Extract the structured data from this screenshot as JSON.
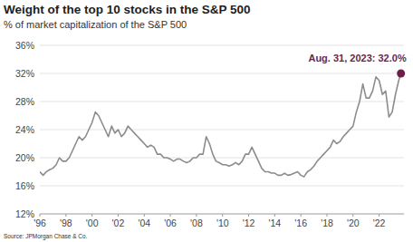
{
  "chart_data": {
    "type": "line",
    "title": "Weight of the top 10 stocks in the S&P 500",
    "subtitle": "% of market capitalization of the S&P 500",
    "source": "Source: JPMorgan Chase & Co.",
    "annotation": "Aug. 31, 2023: 32.0%",
    "color": "#8c8c8c",
    "grid": true,
    "x": [
      1996,
      1996.25,
      1996.5,
      1996.75,
      1997,
      1997.25,
      1997.5,
      1997.75,
      1998,
      1998.25,
      1998.5,
      1998.75,
      1999,
      1999.25,
      1999.5,
      1999.75,
      2000,
      2000.25,
      2000.5,
      2000.75,
      2001,
      2001.25,
      2001.5,
      2001.75,
      2002,
      2002.25,
      2002.5,
      2002.75,
      2003,
      2003.25,
      2003.5,
      2003.75,
      2004,
      2004.25,
      2004.5,
      2004.75,
      2005,
      2005.25,
      2005.5,
      2005.75,
      2006,
      2006.25,
      2006.5,
      2006.75,
      2007,
      2007.25,
      2007.5,
      2007.75,
      2008,
      2008.25,
      2008.5,
      2008.75,
      2009,
      2009.25,
      2009.5,
      2009.75,
      2010,
      2010.25,
      2010.5,
      2010.75,
      2011,
      2011.25,
      2011.5,
      2011.75,
      2012,
      2012.25,
      2012.5,
      2012.75,
      2013,
      2013.25,
      2013.5,
      2013.75,
      2014,
      2014.25,
      2014.5,
      2014.75,
      2015,
      2015.25,
      2015.5,
      2015.75,
      2016,
      2016.25,
      2016.5,
      2016.75,
      2017,
      2017.25,
      2017.5,
      2017.75,
      2018,
      2018.25,
      2018.5,
      2018.75,
      2019,
      2019.25,
      2019.5,
      2019.75,
      2020,
      2020.25,
      2020.5,
      2020.75,
      2021,
      2021.25,
      2021.5,
      2021.75,
      2022,
      2022.25,
      2022.5,
      2022.75,
      2023,
      2023.25,
      2023.5,
      2023.67
    ],
    "values": [
      18,
      17.5,
      18,
      18.3,
      18.5,
      19,
      20,
      19.5,
      19.5,
      20,
      21,
      22,
      23,
      22.5,
      23,
      24,
      25,
      26.5,
      26,
      25,
      24,
      23,
      24.5,
      23.5,
      24,
      23,
      23.5,
      24.5,
      24,
      23.5,
      23,
      22.5,
      22,
      21.5,
      21.8,
      21.5,
      20.5,
      20.5,
      20,
      20,
      19.8,
      19.5,
      19.8,
      19.8,
      19.5,
      19.3,
      19.5,
      20,
      20,
      20.5,
      20.5,
      23,
      22,
      20.5,
      19.5,
      19.3,
      19,
      19,
      18.8,
      19,
      19.3,
      19,
      19.5,
      20.5,
      20.5,
      21.5,
      20.5,
      19.5,
      18.5,
      18,
      18,
      17.8,
      17.8,
      17.5,
      17.5,
      17.8,
      17.5,
      17.6,
      17.8,
      18,
      17.5,
      17.3,
      18,
      18.3,
      18.8,
      19.5,
      20,
      20.5,
      21,
      21.5,
      22.5,
      22,
      22.3,
      23,
      23.5,
      24,
      24.5,
      26.5,
      28,
      30.5,
      28.5,
      28.5,
      29.5,
      31.5,
      31,
      29,
      29.5,
      25.8,
      26.5,
      29,
      31,
      32.0
    ],
    "xlim": [
      1996,
      2023.9
    ],
    "xticks": [
      {
        "value": 1996,
        "label": "'96"
      },
      {
        "value": 1998,
        "label": "'98"
      },
      {
        "value": 2000,
        "label": "'00"
      },
      {
        "value": 2002,
        "label": "'02"
      },
      {
        "value": 2004,
        "label": "'04"
      },
      {
        "value": 2006,
        "label": "'06"
      },
      {
        "value": 2008,
        "label": "'08"
      },
      {
        "value": 2010,
        "label": "'10"
      },
      {
        "value": 2012,
        "label": "'12"
      },
      {
        "value": 2014,
        "label": "'14"
      },
      {
        "value": 2016,
        "label": "'16"
      },
      {
        "value": 2018,
        "label": "'18"
      },
      {
        "value": 2020,
        "label": "'20"
      },
      {
        "value": 2022,
        "label": "'22"
      }
    ],
    "ylim": [
      12,
      36
    ],
    "yticks": [
      {
        "value": 12,
        "label": "12%"
      },
      {
        "value": 16,
        "label": "16%"
      },
      {
        "value": 20,
        "label": "20%"
      },
      {
        "value": 24,
        "label": "24%"
      },
      {
        "value": 28,
        "label": "28%"
      },
      {
        "value": 32,
        "label": "32%"
      },
      {
        "value": 36,
        "label": "36%"
      }
    ]
  }
}
